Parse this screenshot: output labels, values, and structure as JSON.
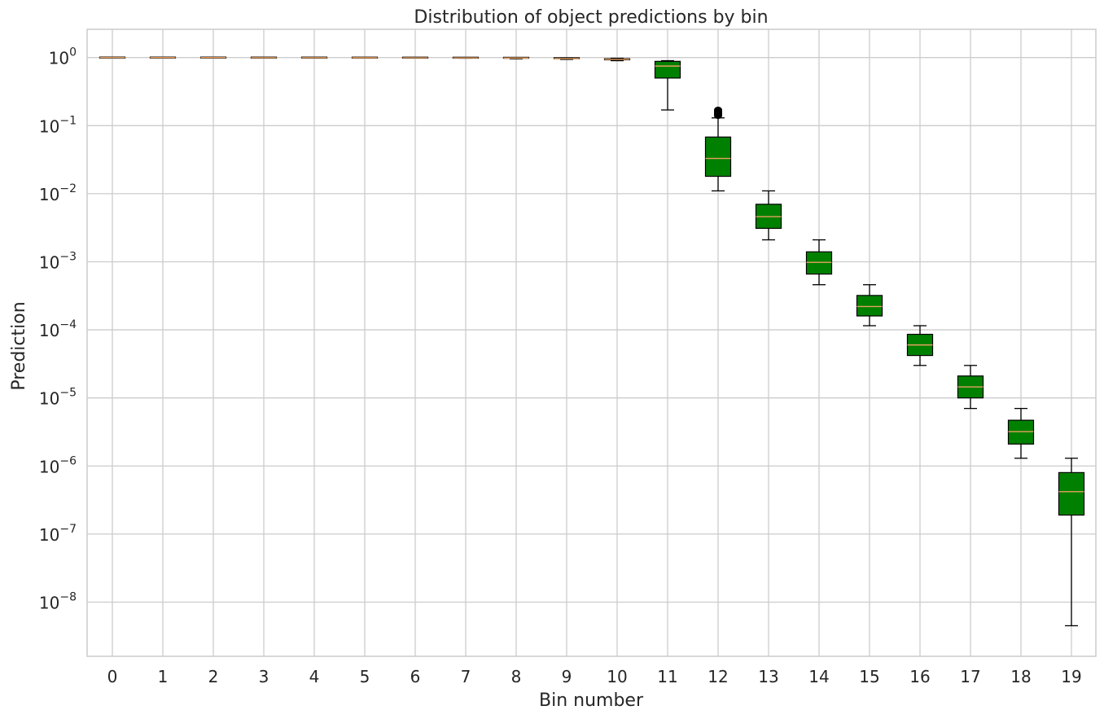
{
  "chart_data": {
    "type": "box",
    "title": "Distribution of object predictions by bin",
    "xlabel": "Bin number",
    "ylabel": "Prediction",
    "y_scale": "log",
    "ylim": [
      1.6e-09,
      2.6
    ],
    "grid": true,
    "box_color": "#008000",
    "median_color": "#e8a060",
    "y_ticks": [
      {
        "base": "10",
        "exp": "0"
      },
      {
        "base": "10",
        "exp": "−1"
      },
      {
        "base": "10",
        "exp": "−2"
      },
      {
        "base": "10",
        "exp": "−3"
      },
      {
        "base": "10",
        "exp": "−4"
      },
      {
        "base": "10",
        "exp": "−5"
      },
      {
        "base": "10",
        "exp": "−6"
      },
      {
        "base": "10",
        "exp": "−7"
      },
      {
        "base": "10",
        "exp": "−8"
      }
    ],
    "categories": [
      "0",
      "1",
      "2",
      "3",
      "4",
      "5",
      "6",
      "7",
      "8",
      "9",
      "10",
      "11",
      "12",
      "13",
      "14",
      "15",
      "16",
      "17",
      "18",
      "19"
    ],
    "boxes": [
      {
        "bin": "0",
        "whislo": 0.999,
        "q1": 0.999,
        "med": 0.9995,
        "q3": 1.0,
        "whishi": 1.0
      },
      {
        "bin": "1",
        "whislo": 0.998,
        "q1": 0.999,
        "med": 0.999,
        "q3": 1.0,
        "whishi": 1.0
      },
      {
        "bin": "2",
        "whislo": 0.997,
        "q1": 0.998,
        "med": 0.999,
        "q3": 1.0,
        "whishi": 1.0
      },
      {
        "bin": "3",
        "whislo": 0.995,
        "q1": 0.997,
        "med": 0.998,
        "q3": 0.999,
        "whishi": 1.0
      },
      {
        "bin": "4",
        "whislo": 0.993,
        "q1": 0.995,
        "med": 0.997,
        "q3": 0.999,
        "whishi": 1.0
      },
      {
        "bin": "5",
        "whislo": 0.99,
        "q1": 0.993,
        "med": 0.995,
        "q3": 0.998,
        "whishi": 1.0
      },
      {
        "bin": "6",
        "whislo": 0.985,
        "q1": 0.99,
        "med": 0.993,
        "q3": 0.997,
        "whishi": 1.0
      },
      {
        "bin": "7",
        "whislo": 0.98,
        "q1": 0.985,
        "med": 0.99,
        "q3": 0.995,
        "whishi": 1.0
      },
      {
        "bin": "8",
        "whislo": 0.96,
        "q1": 0.975,
        "med": 0.985,
        "q3": 0.992,
        "whishi": 0.999
      },
      {
        "bin": "9",
        "whislo": 0.94,
        "q1": 0.955,
        "med": 0.965,
        "q3": 0.978,
        "whishi": 0.99
      },
      {
        "bin": "10",
        "whislo": 0.9,
        "q1": 0.925,
        "med": 0.94,
        "q3": 0.96,
        "whishi": 0.975
      },
      {
        "bin": "11",
        "whislo": 0.17,
        "q1": 0.5,
        "med": 0.75,
        "q3": 0.88,
        "whishi": 0.9
      },
      {
        "bin": "12",
        "whislo": 0.011,
        "q1": 0.018,
        "med": 0.033,
        "q3": 0.068,
        "whishi": 0.13,
        "fliers": [
          0.14,
          0.145,
          0.15,
          0.155,
          0.16,
          0.165,
          0.17
        ]
      },
      {
        "bin": "13",
        "whislo": 0.0021,
        "q1": 0.0031,
        "med": 0.0046,
        "q3": 0.007,
        "whishi": 0.011
      },
      {
        "bin": "14",
        "whislo": 0.00046,
        "q1": 0.00066,
        "med": 0.00098,
        "q3": 0.0014,
        "whishi": 0.0021
      },
      {
        "bin": "15",
        "whislo": 0.000115,
        "q1": 0.00016,
        "med": 0.00022,
        "q3": 0.00032,
        "whishi": 0.00046
      },
      {
        "bin": "16",
        "whislo": 3e-05,
        "q1": 4.2e-05,
        "med": 6e-05,
        "q3": 8.6e-05,
        "whishi": 0.000115
      },
      {
        "bin": "17",
        "whislo": 7e-06,
        "q1": 1e-05,
        "med": 1.45e-05,
        "q3": 2.1e-05,
        "whishi": 3e-05
      },
      {
        "bin": "18",
        "whislo": 1.3e-06,
        "q1": 2.1e-06,
        "med": 3.2e-06,
        "q3": 4.7e-06,
        "whishi": 7e-06
      },
      {
        "bin": "19",
        "whislo": 4.5e-09,
        "q1": 1.9e-07,
        "med": 4.2e-07,
        "q3": 8e-07,
        "whishi": 1.3e-06
      }
    ]
  }
}
